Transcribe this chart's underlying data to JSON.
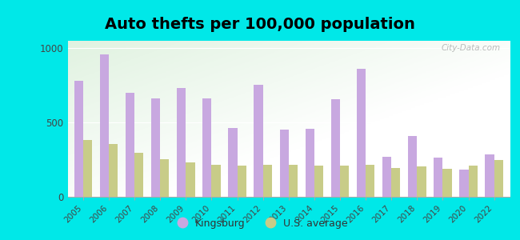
{
  "title": "Auto thefts per 100,000 population",
  "years": [
    2005,
    2006,
    2007,
    2008,
    2009,
    2010,
    2011,
    2012,
    2013,
    2014,
    2015,
    2016,
    2017,
    2018,
    2019,
    2020,
    2022
  ],
  "kingsburg": [
    780,
    960,
    700,
    660,
    730,
    660,
    465,
    755,
    455,
    460,
    655,
    860,
    270,
    410,
    265,
    185,
    285
  ],
  "us_average": [
    380,
    355,
    295,
    255,
    230,
    215,
    210,
    215,
    215,
    210,
    210,
    215,
    195,
    205,
    190,
    210,
    250
  ],
  "kingsburg_color": "#c8a8e0",
  "us_color": "#c8cc88",
  "background_outer": "#00e8e8",
  "title_fontsize": 14,
  "legend_kingsburg": "Kingsburg",
  "legend_us": "U.S. average",
  "ylim": [
    0,
    1050
  ],
  "yticks": [
    0,
    500,
    1000
  ],
  "watermark": "City-Data.com"
}
